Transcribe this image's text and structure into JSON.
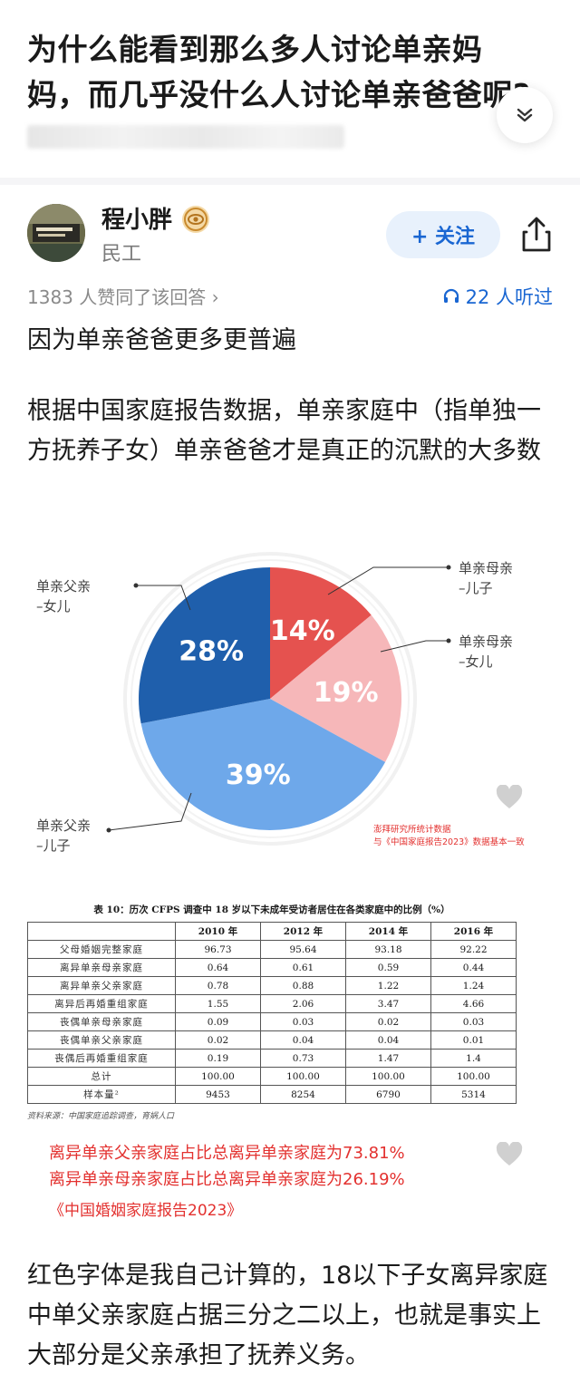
{
  "question": {
    "title": "为什么能看到那么多人讨论单亲妈妈，而几乎没什么人讨论单亲爸爸呢?"
  },
  "answer": {
    "author_name": "程小胖",
    "author_title": "民工",
    "follow_label": "+ 关注",
    "upvotes_text": "1383 人赞同了该回答 ›",
    "listeners_text": "22 人听过",
    "paragraph1": "因为单亲爸爸更多更普遍",
    "paragraph2": "根据中国家庭报告数据，单亲家庭中（指单独一方抚养子女）单亲爸爸才是真正的沉默的大多数",
    "paragraph3": "红色字体是我自己计算的，18以下子女离异家庭中单父亲家庭占据三分之二以上，也就是事实上大部分是父亲承担了抚养义务。"
  },
  "chart_data": {
    "type": "pie",
    "slices": [
      {
        "label": "单亲母亲\n–儿子",
        "value": 14,
        "display": "14%",
        "color": "#e5524f"
      },
      {
        "label": "单亲母亲\n–女儿",
        "value": 19,
        "display": "19%",
        "color": "#f6b7b9"
      },
      {
        "label": "单亲父亲\n–儿子",
        "value": 39,
        "display": "39%",
        "color": "#6ea8ea"
      },
      {
        "label": "单亲父亲\n–女儿",
        "value": 28,
        "display": "28%",
        "color": "#1f5fac"
      }
    ],
    "note_lines": [
      "澎拜研究所统计数据",
      "与《中国家庭报告2023》数据基本一致"
    ]
  },
  "table": {
    "caption": "表 10：历次 CFPS 调查中 18 岁以下未成年受访者居住在各类家庭中的比例（%）",
    "columns": [
      "",
      "2010 年",
      "2012 年",
      "2014 年",
      "2016 年"
    ],
    "rows": [
      [
        "父母婚姻完整家庭",
        "96.73",
        "95.64",
        "93.18",
        "92.22"
      ],
      [
        "离异单亲母亲家庭",
        "0.64",
        "0.61",
        "0.59",
        "0.44"
      ],
      [
        "离异单亲父亲家庭",
        "0.78",
        "0.88",
        "1.22",
        "1.24"
      ],
      [
        "离异后再婚重组家庭",
        "1.55",
        "2.06",
        "3.47",
        "4.66"
      ],
      [
        "丧偶单亲母亲家庭",
        "0.09",
        "0.03",
        "0.02",
        "0.03"
      ],
      [
        "丧偶单亲父亲家庭",
        "0.02",
        "0.04",
        "0.04",
        "0.01"
      ],
      [
        "丧偶后再婚重组家庭",
        "0.19",
        "0.73",
        "1.47",
        "1.4"
      ],
      [
        "总计",
        "100.00",
        "100.00",
        "100.00",
        "100.00"
      ],
      [
        "样本量²",
        "9453",
        "8254",
        "6790",
        "5314"
      ]
    ],
    "source": "资料来源：中国家庭追踪调查，育娲人口"
  },
  "red_notes": {
    "line1": "离异单亲父亲家庭占比总离异单亲家庭为73.81%",
    "line2": "离异单亲母亲家庭占比总离异单亲家庭为26.19%",
    "source": "《中国婚姻家庭报告2023》"
  }
}
